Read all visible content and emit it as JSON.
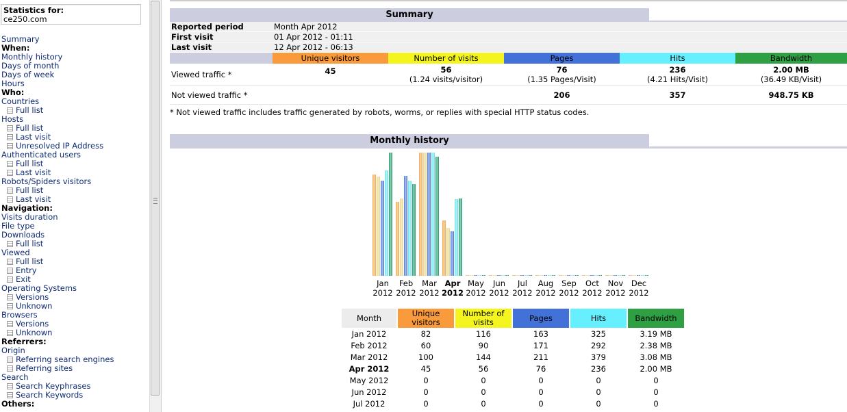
{
  "left": {
    "stats_label": "Statistics for:",
    "domain": "ce250.com",
    "menu": [
      {
        "t": "Summary",
        "k": "link"
      },
      {
        "t": "When:",
        "k": "hdr"
      },
      {
        "t": "Monthly history",
        "k": "link"
      },
      {
        "t": "Days of month",
        "k": "link"
      },
      {
        "t": "Days of week",
        "k": "link"
      },
      {
        "t": "Hours",
        "k": "link"
      },
      {
        "t": "Who:",
        "k": "hdr"
      },
      {
        "t": "Countries",
        "k": "link"
      },
      {
        "t": "Full list",
        "k": "sub"
      },
      {
        "t": "Hosts",
        "k": "link"
      },
      {
        "t": "Full list",
        "k": "sub"
      },
      {
        "t": "Last visit",
        "k": "sub"
      },
      {
        "t": "Unresolved IP Address",
        "k": "sub"
      },
      {
        "t": "Authenticated users",
        "k": "link"
      },
      {
        "t": "Full list",
        "k": "sub"
      },
      {
        "t": "Last visit",
        "k": "sub"
      },
      {
        "t": "Robots/Spiders visitors",
        "k": "link"
      },
      {
        "t": "Full list",
        "k": "sub"
      },
      {
        "t": "Last visit",
        "k": "sub"
      },
      {
        "t": "Navigation:",
        "k": "hdr"
      },
      {
        "t": "Visits duration",
        "k": "link"
      },
      {
        "t": "File type",
        "k": "link"
      },
      {
        "t": "Downloads",
        "k": "link"
      },
      {
        "t": "Full list",
        "k": "sub"
      },
      {
        "t": "Viewed",
        "k": "link"
      },
      {
        "t": "Full list",
        "k": "sub"
      },
      {
        "t": "Entry",
        "k": "sub"
      },
      {
        "t": "Exit",
        "k": "sub"
      },
      {
        "t": "Operating Systems",
        "k": "link"
      },
      {
        "t": "Versions",
        "k": "sub"
      },
      {
        "t": "Unknown",
        "k": "sub"
      },
      {
        "t": "Browsers",
        "k": "link"
      },
      {
        "t": "Versions",
        "k": "sub"
      },
      {
        "t": "Unknown",
        "k": "sub"
      },
      {
        "t": "Referrers:",
        "k": "hdr"
      },
      {
        "t": "Origin",
        "k": "link"
      },
      {
        "t": "Referring search engines",
        "k": "sub"
      },
      {
        "t": "Referring sites",
        "k": "sub"
      },
      {
        "t": "Search",
        "k": "link"
      },
      {
        "t": "Search Keyphrases",
        "k": "sub"
      },
      {
        "t": "Search Keywords",
        "k": "sub"
      },
      {
        "t": "Others:",
        "k": "hdr"
      }
    ]
  },
  "summary": {
    "title": "Summary",
    "reported_period_label": "Reported period",
    "reported_period": "Month Apr 2012",
    "first_visit_label": "First visit",
    "first_visit": "01 Apr 2012 - 01:11",
    "last_visit_label": "Last visit",
    "last_visit": "12 Apr 2012 - 06:13",
    "col_uv": "Unique visitors",
    "col_nv": "Number of visits",
    "col_pg": "Pages",
    "col_ht": "Hits",
    "col_bw": "Bandwidth",
    "viewed_label": "Viewed traffic *",
    "viewed_uv": "45",
    "viewed_nv": "56",
    "viewed_nv_sub": "(1.24 visits/visitor)",
    "viewed_pg": "76",
    "viewed_pg_sub": "(1.35 Pages/Visit)",
    "viewed_ht": "236",
    "viewed_ht_sub": "(4.21 Hits/Visit)",
    "viewed_bw": "2.00 MB",
    "viewed_bw_sub": "(36.49 KB/Visit)",
    "notviewed_label": "Not viewed traffic *",
    "notviewed_pg": "206",
    "notviewed_ht": "357",
    "notviewed_bw": "948.75 KB",
    "note": "* Not viewed traffic includes traffic generated by robots, worms, or replies with special HTTP status codes."
  },
  "history": {
    "title": "Monthly history",
    "col_month": "Month",
    "col_uv": "Unique visitors",
    "col_nv": "Number of visits",
    "col_pg": "Pages",
    "col_ht": "Hits",
    "col_bw": "Bandwidth",
    "rows": [
      {
        "month": "Jan 2012",
        "uv": "82",
        "nv": "116",
        "pg": "163",
        "ht": "325",
        "bw": "3.19 MB"
      },
      {
        "month": "Feb 2012",
        "uv": "60",
        "nv": "90",
        "pg": "171",
        "ht": "292",
        "bw": "2.38 MB"
      },
      {
        "month": "Mar 2012",
        "uv": "100",
        "nv": "144",
        "pg": "211",
        "ht": "379",
        "bw": "3.08 MB"
      },
      {
        "month": "Apr 2012",
        "uv": "45",
        "nv": "56",
        "pg": "76",
        "ht": "236",
        "bw": "2.00 MB",
        "bold": true
      },
      {
        "month": "May 2012",
        "uv": "0",
        "nv": "0",
        "pg": "0",
        "ht": "0",
        "bw": "0"
      },
      {
        "month": "Jun 2012",
        "uv": "0",
        "nv": "0",
        "pg": "0",
        "ht": "0",
        "bw": "0"
      },
      {
        "month": "Jul 2012",
        "uv": "0",
        "nv": "0",
        "pg": "0",
        "ht": "0",
        "bw": "0"
      }
    ]
  },
  "chart_data": {
    "type": "bar",
    "categories": [
      "Jan",
      "Feb",
      "Mar",
      "Apr",
      "May",
      "Jun",
      "Jul",
      "Aug",
      "Sep",
      "Oct",
      "Nov",
      "Dec"
    ],
    "category_years": [
      "2012",
      "2012",
      "2012",
      "2012",
      "2012",
      "2012",
      "2012",
      "2012",
      "2012",
      "2012",
      "2012",
      "2012"
    ],
    "highlight_category": "Apr",
    "series": [
      {
        "name": "Unique visitors",
        "color": "#f0a848",
        "values": [
          82,
          60,
          100,
          45,
          0,
          0,
          0,
          0,
          0,
          0,
          0,
          0
        ],
        "max": 100
      },
      {
        "name": "Number of visits",
        "color": "#e8d688",
        "values": [
          116,
          90,
          144,
          56,
          0,
          0,
          0,
          0,
          0,
          0,
          0,
          0
        ],
        "max": 144
      },
      {
        "name": "Pages",
        "color": "#4a78d8",
        "values": [
          163,
          171,
          211,
          76,
          0,
          0,
          0,
          0,
          0,
          0,
          0,
          0
        ],
        "max": 211
      },
      {
        "name": "Hits",
        "color": "#66e4ec",
        "values": [
          325,
          292,
          379,
          236,
          0,
          0,
          0,
          0,
          0,
          0,
          0,
          0
        ],
        "max": 379
      },
      {
        "name": "Bandwidth",
        "color": "#1f9a6a",
        "values": [
          3.19,
          2.38,
          3.08,
          2.0,
          0,
          0,
          0,
          0,
          0,
          0,
          0,
          0
        ],
        "max": 3.19
      }
    ]
  }
}
